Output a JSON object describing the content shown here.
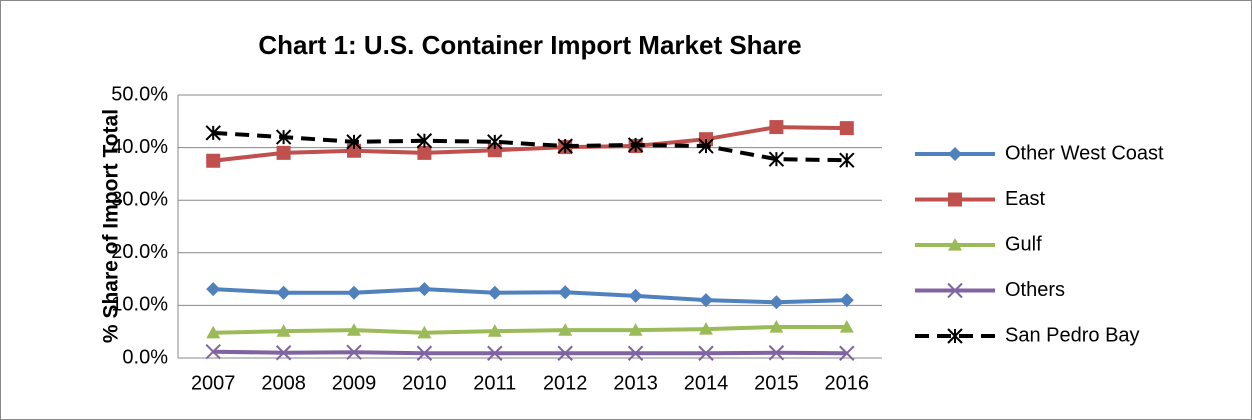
{
  "chart_data": {
    "type": "line",
    "title": "Chart 1: U.S. Container Import Market Share",
    "y_label": "% Share of Import Total",
    "categories": [
      "2007",
      "2008",
      "2009",
      "2010",
      "2011",
      "2012",
      "2013",
      "2014",
      "2015",
      "2016"
    ],
    "ylim": [
      0,
      50
    ],
    "yticks": [
      {
        "value": 0,
        "label": "0.0%"
      },
      {
        "value": 10,
        "label": "10.0%"
      },
      {
        "value": 20,
        "label": "20.0%"
      },
      {
        "value": 30,
        "label": "30.0%"
      },
      {
        "value": 40,
        "label": "40.0%"
      },
      {
        "value": 50,
        "label": "50.0%"
      }
    ],
    "grid": true,
    "legend": "right",
    "series": [
      {
        "name": "Other West Coast",
        "color": "#4f81bd",
        "marker": "diamond",
        "values": [
          13.1,
          12.4,
          12.4,
          13.1,
          12.4,
          12.5,
          11.8,
          11.0,
          10.6,
          11.0
        ]
      },
      {
        "name": "East",
        "color": "#c0504d",
        "marker": "square",
        "values": [
          37.5,
          39.0,
          39.4,
          39.0,
          39.5,
          40.1,
          40.3,
          41.6,
          43.9,
          43.7
        ]
      },
      {
        "name": "Gulf",
        "color": "#9bbb59",
        "marker": "triangle",
        "values": [
          4.8,
          5.1,
          5.3,
          4.8,
          5.1,
          5.3,
          5.3,
          5.5,
          5.9,
          5.9
        ]
      },
      {
        "name": "Others",
        "color": "#8064a2",
        "marker": "x",
        "values": [
          1.2,
          1.0,
          1.1,
          0.9,
          0.9,
          0.9,
          0.9,
          0.9,
          1.0,
          0.9
        ]
      },
      {
        "name": "San Pedro Bay",
        "color": "#000000",
        "marker": "asterisk",
        "dash": true,
        "values": [
          42.8,
          42.0,
          41.1,
          41.3,
          41.1,
          40.3,
          40.5,
          40.3,
          37.8,
          37.6
        ]
      }
    ]
  }
}
